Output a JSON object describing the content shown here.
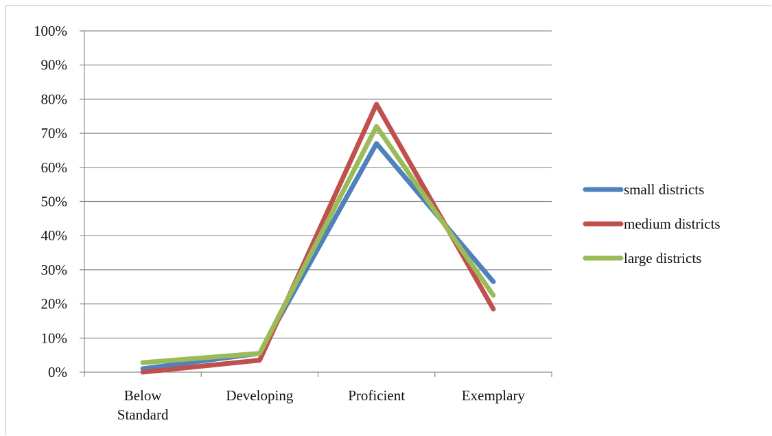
{
  "chart_data": {
    "type": "line",
    "title": "",
    "xlabel": "",
    "ylabel": "",
    "categories": [
      [
        "Below",
        "Standard"
      ],
      [
        "Developing"
      ],
      [
        "Proficient"
      ],
      [
        "Exemplary"
      ]
    ],
    "y_ticks": [
      "0%",
      "10%",
      "20%",
      "30%",
      "40%",
      "50%",
      "60%",
      "70%",
      "80%",
      "90%",
      "100%"
    ],
    "ylim": [
      0,
      100
    ],
    "grid": true,
    "legend_position": "right",
    "series": [
      {
        "name": "small districts",
        "color": "#4f81bd",
        "values": [
          1,
          5.5,
          67,
          26.5
        ]
      },
      {
        "name": "medium districts",
        "color": "#c0504d",
        "values": [
          0,
          3.5,
          78.5,
          18.5
        ]
      },
      {
        "name": "large districts",
        "color": "#9bbb59",
        "values": [
          2.8,
          5.5,
          72,
          22.5
        ]
      }
    ]
  }
}
